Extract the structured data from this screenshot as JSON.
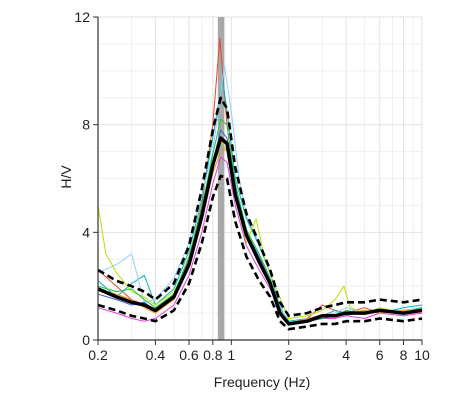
{
  "chart_data": {
    "type": "line",
    "xlabel": "Frequency (Hz)",
    "ylabel": "H/V",
    "x_scale": "log",
    "xlim": [
      0.2,
      10
    ],
    "ylim": [
      0,
      12
    ],
    "grid": true,
    "x_ticks": [
      {
        "value": 0.2,
        "label": "0.2"
      },
      {
        "value": 0.4,
        "label": "0.4"
      },
      {
        "value": 0.6,
        "label": "0.6"
      },
      {
        "value": 0.8,
        "label": "0.8"
      },
      {
        "value": 1,
        "label": "1"
      },
      {
        "value": 2,
        "label": "2"
      },
      {
        "value": 4,
        "label": "4"
      },
      {
        "value": 6,
        "label": "6"
      },
      {
        "value": 8,
        "label": "8"
      },
      {
        "value": 10,
        "label": "10"
      }
    ],
    "y_ticks": [
      {
        "value": 0,
        "label": "0"
      },
      {
        "value": 4,
        "label": "4"
      },
      {
        "value": 8,
        "label": "8"
      },
      {
        "value": 12,
        "label": "12"
      }
    ],
    "peak_band": {
      "from": 0.85,
      "to": 0.92,
      "color": "#9a9a9a"
    },
    "series": [
      {
        "color": "#e8452c",
        "style": "thin",
        "points": [
          [
            0.2,
            2.6
          ],
          [
            0.25,
            2.0
          ],
          [
            0.3,
            1.5
          ],
          [
            0.35,
            1.3
          ],
          [
            0.4,
            1.0
          ],
          [
            0.5,
            1.6
          ],
          [
            0.6,
            3.0
          ],
          [
            0.7,
            5.0
          ],
          [
            0.8,
            8.0
          ],
          [
            0.87,
            11.2
          ],
          [
            0.95,
            8.0
          ],
          [
            1.05,
            5.5
          ],
          [
            1.2,
            4.0
          ],
          [
            1.4,
            3.0
          ],
          [
            1.6,
            2.2
          ],
          [
            1.8,
            1.0
          ],
          [
            2.0,
            0.6
          ],
          [
            2.5,
            0.8
          ],
          [
            3.0,
            1.3
          ],
          [
            3.5,
            1.1
          ],
          [
            4.0,
            1.0
          ],
          [
            5.0,
            1.2
          ],
          [
            6.0,
            1.0
          ],
          [
            8.0,
            1.1
          ],
          [
            10,
            1.2
          ]
        ]
      },
      {
        "color": "#00b8b8",
        "style": "thin",
        "points": [
          [
            0.2,
            2.2
          ],
          [
            0.25,
            1.6
          ],
          [
            0.3,
            2.1
          ],
          [
            0.35,
            2.4
          ],
          [
            0.4,
            1.3
          ],
          [
            0.5,
            1.9
          ],
          [
            0.6,
            3.3
          ],
          [
            0.7,
            5.2
          ],
          [
            0.8,
            7.5
          ],
          [
            0.9,
            9.7
          ],
          [
            0.95,
            8.5
          ],
          [
            1.05,
            6.0
          ],
          [
            1.2,
            4.5
          ],
          [
            1.4,
            3.5
          ],
          [
            1.6,
            2.5
          ],
          [
            1.8,
            1.2
          ],
          [
            2.0,
            0.7
          ],
          [
            2.5,
            0.8
          ],
          [
            3.0,
            0.9
          ],
          [
            3.5,
            1.1
          ],
          [
            4.0,
            0.9
          ],
          [
            5.0,
            1.1
          ],
          [
            6.0,
            1.0
          ],
          [
            8.0,
            1.2
          ],
          [
            10,
            1.3
          ]
        ]
      },
      {
        "color": "#8ed0ff",
        "style": "thin",
        "points": [
          [
            0.2,
            2.5
          ],
          [
            0.25,
            2.8
          ],
          [
            0.3,
            3.2
          ],
          [
            0.35,
            1.4
          ],
          [
            0.4,
            1.5
          ],
          [
            0.5,
            2.3
          ],
          [
            0.6,
            3.6
          ],
          [
            0.7,
            5.4
          ],
          [
            0.8,
            7.0
          ],
          [
            0.92,
            10.2
          ],
          [
            1.0,
            8.5
          ],
          [
            1.1,
            6.0
          ],
          [
            1.2,
            4.6
          ],
          [
            1.4,
            3.6
          ],
          [
            1.6,
            2.5
          ],
          [
            1.8,
            1.3
          ],
          [
            2.0,
            0.6
          ],
          [
            2.5,
            0.7
          ],
          [
            3.0,
            0.9
          ],
          [
            3.5,
            1.0
          ],
          [
            4.0,
            1.2
          ],
          [
            5.0,
            1.0
          ],
          [
            6.0,
            1.1
          ],
          [
            8.0,
            1.1
          ],
          [
            10,
            1.2
          ]
        ]
      },
      {
        "color": "#b8e000",
        "style": "thin",
        "points": [
          [
            0.2,
            5.0
          ],
          [
            0.22,
            3.2
          ],
          [
            0.25,
            2.5
          ],
          [
            0.3,
            1.8
          ],
          [
            0.35,
            1.6
          ],
          [
            0.4,
            1.3
          ],
          [
            0.5,
            1.8
          ],
          [
            0.6,
            2.8
          ],
          [
            0.7,
            4.7
          ],
          [
            0.8,
            6.5
          ],
          [
            0.88,
            7.4
          ],
          [
            0.95,
            7.0
          ],
          [
            1.05,
            5.3
          ],
          [
            1.2,
            3.6
          ],
          [
            1.35,
            4.5
          ],
          [
            1.5,
            3.0
          ],
          [
            1.7,
            2.0
          ],
          [
            2.0,
            0.8
          ],
          [
            2.5,
            0.9
          ],
          [
            3.0,
            1.1
          ],
          [
            3.5,
            1.5
          ],
          [
            3.9,
            2.0
          ],
          [
            4.2,
            1.2
          ],
          [
            5.0,
            1.0
          ],
          [
            6.0,
            1.2
          ],
          [
            8.0,
            1.0
          ],
          [
            10,
            1.1
          ]
        ]
      },
      {
        "color": "#e040e0",
        "style": "thin",
        "points": [
          [
            0.2,
            1.2
          ],
          [
            0.25,
            1.0
          ],
          [
            0.3,
            0.8
          ],
          [
            0.35,
            0.7
          ],
          [
            0.4,
            0.8
          ],
          [
            0.5,
            1.3
          ],
          [
            0.6,
            2.4
          ],
          [
            0.7,
            4.0
          ],
          [
            0.8,
            5.8
          ],
          [
            0.88,
            6.8
          ],
          [
            0.95,
            6.6
          ],
          [
            1.05,
            5.0
          ],
          [
            1.2,
            3.5
          ],
          [
            1.4,
            2.6
          ],
          [
            1.6,
            1.9
          ],
          [
            1.8,
            1.0
          ],
          [
            2.0,
            0.6
          ],
          [
            2.5,
            0.7
          ],
          [
            3.0,
            0.8
          ],
          [
            3.5,
            0.8
          ],
          [
            4.0,
            0.9
          ],
          [
            5.0,
            0.8
          ],
          [
            6.0,
            1.0
          ],
          [
            8.0,
            0.9
          ],
          [
            10,
            1.0
          ]
        ]
      },
      {
        "color": "#3a5fe0",
        "style": "thin",
        "points": [
          [
            0.2,
            1.7
          ],
          [
            0.25,
            1.5
          ],
          [
            0.3,
            1.3
          ],
          [
            0.35,
            1.4
          ],
          [
            0.4,
            1.1
          ],
          [
            0.5,
            1.6
          ],
          [
            0.6,
            2.9
          ],
          [
            0.7,
            4.6
          ],
          [
            0.8,
            6.6
          ],
          [
            0.88,
            7.8
          ],
          [
            0.95,
            7.5
          ],
          [
            1.05,
            5.6
          ],
          [
            1.2,
            4.0
          ],
          [
            1.4,
            3.1
          ],
          [
            1.6,
            2.2
          ],
          [
            1.8,
            1.1
          ],
          [
            2.0,
            0.6
          ],
          [
            2.5,
            0.7
          ],
          [
            3.0,
            0.8
          ],
          [
            3.5,
            0.9
          ],
          [
            4.0,
            1.0
          ],
          [
            5.0,
            1.0
          ],
          [
            6.0,
            1.1
          ],
          [
            8.0,
            1.0
          ],
          [
            10,
            1.2
          ]
        ]
      },
      {
        "color": "#f29a1a",
        "style": "thin",
        "points": [
          [
            0.2,
            1.9
          ],
          [
            0.25,
            1.7
          ],
          [
            0.3,
            1.5
          ],
          [
            0.35,
            1.2
          ],
          [
            0.4,
            1.0
          ],
          [
            0.5,
            1.5
          ],
          [
            0.6,
            2.7
          ],
          [
            0.7,
            4.4
          ],
          [
            0.8,
            6.2
          ],
          [
            0.88,
            7.0
          ],
          [
            0.95,
            7.1
          ],
          [
            1.05,
            5.4
          ],
          [
            1.2,
            3.8
          ],
          [
            1.4,
            2.8
          ],
          [
            1.6,
            2.0
          ],
          [
            1.8,
            1.0
          ],
          [
            2.0,
            0.6
          ],
          [
            2.5,
            0.8
          ],
          [
            3.0,
            0.9
          ],
          [
            3.5,
            0.9
          ],
          [
            4.0,
            1.0
          ],
          [
            5.0,
            1.1
          ],
          [
            6.0,
            1.0
          ],
          [
            8.0,
            1.1
          ],
          [
            10,
            1.1
          ]
        ]
      },
      {
        "color": "#20c040",
        "style": "thin",
        "points": [
          [
            0.2,
            2.0
          ],
          [
            0.25,
            1.8
          ],
          [
            0.3,
            1.9
          ],
          [
            0.35,
            1.5
          ],
          [
            0.4,
            1.2
          ],
          [
            0.5,
            1.7
          ],
          [
            0.6,
            3.1
          ],
          [
            0.7,
            4.9
          ],
          [
            0.8,
            6.9
          ],
          [
            0.88,
            8.2
          ],
          [
            0.95,
            8.0
          ],
          [
            1.05,
            5.8
          ],
          [
            1.2,
            4.1
          ],
          [
            1.4,
            3.2
          ],
          [
            1.6,
            2.3
          ],
          [
            1.8,
            1.1
          ],
          [
            2.0,
            0.6
          ],
          [
            2.5,
            0.7
          ],
          [
            3.0,
            0.8
          ],
          [
            3.5,
            0.9
          ],
          [
            4.0,
            1.1
          ],
          [
            5.0,
            1.0
          ],
          [
            6.0,
            1.1
          ],
          [
            8.0,
            1.0
          ],
          [
            10,
            1.2
          ]
        ]
      },
      {
        "color": "#000000",
        "style": "dashed",
        "points": [
          [
            0.2,
            2.6
          ],
          [
            0.25,
            2.2
          ],
          [
            0.3,
            2.0
          ],
          [
            0.35,
            1.8
          ],
          [
            0.4,
            1.5
          ],
          [
            0.5,
            2.1
          ],
          [
            0.6,
            3.5
          ],
          [
            0.7,
            5.6
          ],
          [
            0.8,
            7.8
          ],
          [
            0.88,
            9.0
          ],
          [
            0.95,
            8.6
          ],
          [
            1.05,
            6.4
          ],
          [
            1.2,
            4.7
          ],
          [
            1.4,
            3.6
          ],
          [
            1.6,
            2.6
          ],
          [
            1.8,
            1.4
          ],
          [
            2.0,
            0.9
          ],
          [
            2.5,
            1.0
          ],
          [
            3.0,
            1.2
          ],
          [
            3.5,
            1.3
          ],
          [
            4.0,
            1.4
          ],
          [
            5.0,
            1.4
          ],
          [
            6.0,
            1.5
          ],
          [
            8.0,
            1.4
          ],
          [
            10,
            1.5
          ]
        ]
      },
      {
        "color": "#000000",
        "style": "thick",
        "points": [
          [
            0.2,
            1.9
          ],
          [
            0.25,
            1.6
          ],
          [
            0.3,
            1.4
          ],
          [
            0.35,
            1.3
          ],
          [
            0.4,
            1.1
          ],
          [
            0.5,
            1.6
          ],
          [
            0.6,
            2.8
          ],
          [
            0.7,
            4.6
          ],
          [
            0.8,
            6.5
          ],
          [
            0.88,
            7.5
          ],
          [
            0.95,
            7.3
          ],
          [
            1.05,
            5.4
          ],
          [
            1.2,
            3.9
          ],
          [
            1.4,
            2.9
          ],
          [
            1.6,
            2.1
          ],
          [
            1.8,
            1.0
          ],
          [
            2.0,
            0.6
          ],
          [
            2.5,
            0.7
          ],
          [
            3.0,
            0.9
          ],
          [
            3.5,
            0.9
          ],
          [
            4.0,
            1.0
          ],
          [
            5.0,
            1.0
          ],
          [
            6.0,
            1.1
          ],
          [
            8.0,
            1.0
          ],
          [
            10,
            1.1
          ]
        ]
      },
      {
        "color": "#000000",
        "style": "dashed",
        "points": [
          [
            0.2,
            1.3
          ],
          [
            0.25,
            1.1
          ],
          [
            0.3,
            0.9
          ],
          [
            0.35,
            0.8
          ],
          [
            0.4,
            0.7
          ],
          [
            0.5,
            1.1
          ],
          [
            0.6,
            2.1
          ],
          [
            0.7,
            3.6
          ],
          [
            0.8,
            5.3
          ],
          [
            0.88,
            6.1
          ],
          [
            0.95,
            6.0
          ],
          [
            1.05,
            4.4
          ],
          [
            1.2,
            3.1
          ],
          [
            1.4,
            2.2
          ],
          [
            1.6,
            1.6
          ],
          [
            1.8,
            0.7
          ],
          [
            2.0,
            0.4
          ],
          [
            2.5,
            0.5
          ],
          [
            3.0,
            0.6
          ],
          [
            3.5,
            0.6
          ],
          [
            4.0,
            0.7
          ],
          [
            5.0,
            0.7
          ],
          [
            6.0,
            0.8
          ],
          [
            8.0,
            0.7
          ],
          [
            10,
            0.8
          ]
        ]
      }
    ]
  }
}
